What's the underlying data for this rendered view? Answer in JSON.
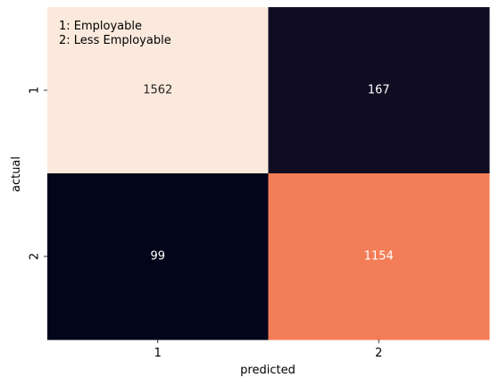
{
  "chart_data": {
    "type": "heatmap",
    "title": "",
    "xlabel": "predicted",
    "ylabel": "actual",
    "x_categories": [
      "1",
      "2"
    ],
    "y_categories": [
      "1",
      "2"
    ],
    "values": [
      [
        1562,
        167
      ],
      [
        99,
        1154
      ]
    ],
    "annotations": [
      "1: Employable",
      "2: Less Employable"
    ],
    "colorbar": false,
    "cell_colors": [
      [
        "#fae9dc",
        "#100d23"
      ],
      [
        "#03051a",
        "#f37d56"
      ]
    ],
    "text_colors": [
      [
        "#262626",
        "#ffffff"
      ],
      [
        "#ffffff",
        "#ffffff"
      ]
    ]
  }
}
